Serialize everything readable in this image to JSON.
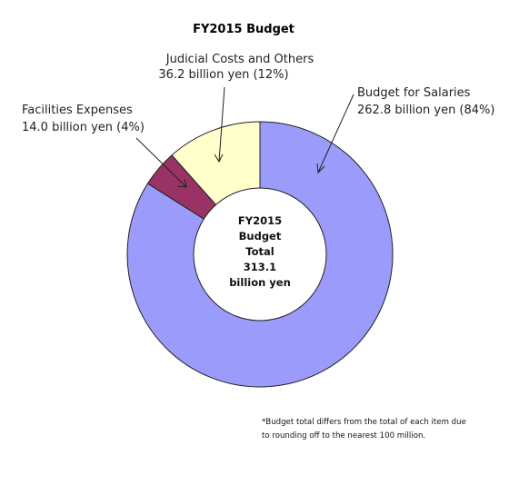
{
  "chart_data": {
    "type": "pie",
    "title": "FY2015 Budget",
    "unit": "billion yen",
    "slices": [
      {
        "label": "Budget for Salaries",
        "value": 262.8,
        "percent_label": "262.8 billion yen (84%)",
        "color": "#9b9bfb"
      },
      {
        "label": "Facilities Expenses",
        "value": 14.0,
        "percent_label": "14.0 billion yen (4%)",
        "color": "#993366"
      },
      {
        "label": "Judicial Costs and Others",
        "value": 36.2,
        "percent_label": "36.2 billion yen (12%)",
        "color": "#ffffcc"
      }
    ],
    "center_text": [
      "FY2015",
      "Budget",
      "Total",
      "313.1",
      "billion yen"
    ]
  },
  "footnote": {
    "line1": "*Budget total differs from the total of each item due",
    "line2": "to rounding off to the nearest 100 million."
  }
}
